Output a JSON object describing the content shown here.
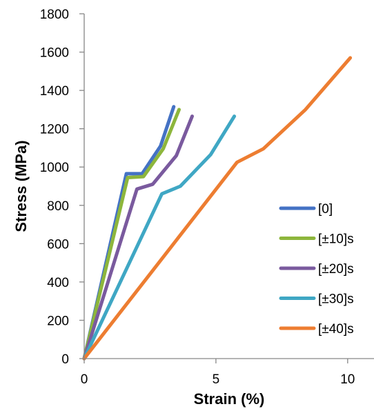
{
  "chart_data": {
    "type": "line",
    "title": "",
    "xlabel": "Strain (%)",
    "ylabel": "Stress (MPa)",
    "xlim": [
      0,
      11
    ],
    "ylim": [
      0,
      1800
    ],
    "xticks": [
      0,
      5,
      10
    ],
    "yticks": [
      0,
      200,
      400,
      600,
      800,
      1000,
      1200,
      1400,
      1600,
      1800
    ],
    "grid": false,
    "legend_position": "right",
    "series": [
      {
        "name": "[0]",
        "color": "#4472C4",
        "points": [
          [
            0,
            0
          ],
          [
            1.6,
            965
          ],
          [
            2.2,
            965
          ],
          [
            2.9,
            1110
          ],
          [
            3.4,
            1315
          ]
        ]
      },
      {
        "name": "[±10]s",
        "color": "#8DB63C",
        "points": [
          [
            0,
            0
          ],
          [
            1.65,
            945
          ],
          [
            2.25,
            950
          ],
          [
            3.0,
            1095
          ],
          [
            3.6,
            1300
          ]
        ]
      },
      {
        "name": "[±20]s",
        "color": "#7A5A9E",
        "points": [
          [
            0,
            0
          ],
          [
            2.0,
            885
          ],
          [
            2.6,
            910
          ],
          [
            3.5,
            1060
          ],
          [
            4.1,
            1265
          ]
        ]
      },
      {
        "name": "[±30]s",
        "color": "#3FA7C4",
        "points": [
          [
            0,
            0
          ],
          [
            2.95,
            860
          ],
          [
            3.65,
            900
          ],
          [
            4.8,
            1065
          ],
          [
            5.7,
            1265
          ]
        ]
      },
      {
        "name": "[±40]s",
        "color": "#ED7D31",
        "points": [
          [
            0,
            0
          ],
          [
            5.8,
            1025
          ],
          [
            6.8,
            1095
          ],
          [
            8.4,
            1300
          ],
          [
            10.1,
            1570
          ]
        ]
      }
    ]
  }
}
